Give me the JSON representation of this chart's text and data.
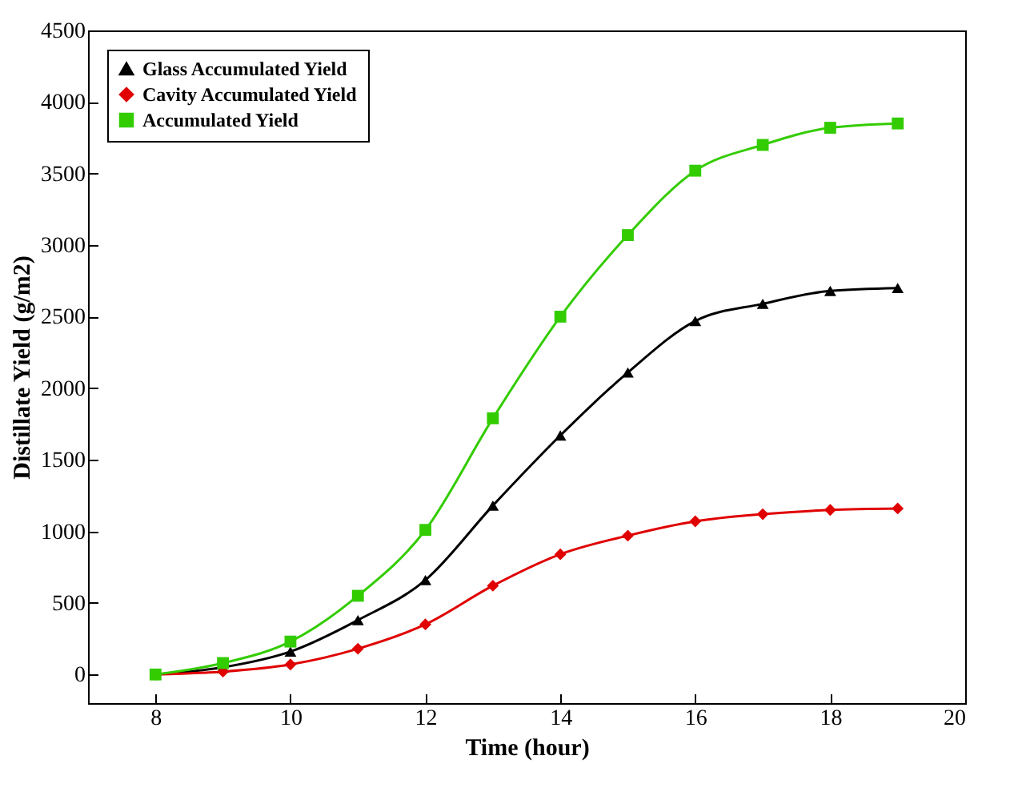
{
  "chart_data": {
    "type": "line",
    "xlabel": "Time (hour)",
    "ylabel": "Distillate Yield (g/m2)",
    "x": [
      8,
      9,
      10,
      11,
      12,
      13,
      14,
      15,
      16,
      17,
      18,
      19
    ],
    "series": [
      {
        "name": "Glass Accumulated Yield",
        "color": "#000000",
        "marker": "triangle",
        "values": [
          0,
          50,
          160,
          380,
          660,
          1180,
          1670,
          2110,
          2470,
          2590,
          2680,
          2700
        ]
      },
      {
        "name": "Cavity Accumulated Yield",
        "color": "#e00000",
        "marker": "diamond",
        "values": [
          0,
          20,
          70,
          180,
          350,
          620,
          840,
          970,
          1070,
          1120,
          1150,
          1160
        ]
      },
      {
        "name": "Accumulated Yield",
        "color": "#33cc00",
        "marker": "square",
        "values": [
          0,
          80,
          230,
          550,
          1010,
          1790,
          2500,
          3070,
          3520,
          3700,
          3820,
          3850
        ]
      }
    ],
    "xlim": [
      7,
      20
    ],
    "xticks": [
      8,
      10,
      12,
      14,
      16,
      18,
      20
    ],
    "ylim": [
      -200,
      4500
    ],
    "yticks": [
      0,
      500,
      1000,
      1500,
      2000,
      2500,
      3000,
      3500,
      4000,
      4500
    ],
    "grid": false,
    "legend": "top left",
    "line_style": "solid"
  }
}
